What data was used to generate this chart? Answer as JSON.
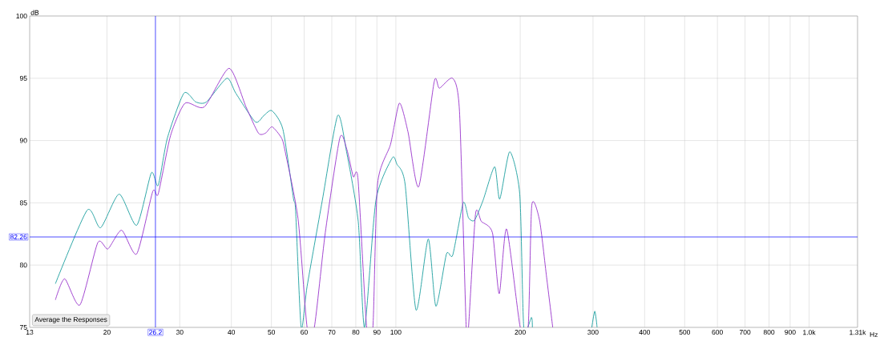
{
  "chart_data": {
    "type": "line",
    "xlabel": "Hz",
    "ylabel": "dB",
    "log": "x",
    "grid": true,
    "marker": "none",
    "line_style": "solid",
    "xlim": [
      13,
      1310
    ],
    "ylim": [
      75,
      100
    ],
    "xticks": [
      13,
      20,
      30,
      40,
      50,
      60,
      70,
      80,
      90,
      100,
      200,
      300,
      400,
      500,
      600,
      700,
      800,
      900,
      {
        "value": 1000,
        "label": "1.0k"
      },
      {
        "value": 1310,
        "label": "1.31k"
      }
    ],
    "yticks": [
      75,
      80,
      85,
      90,
      95,
      100
    ],
    "ref_lines": [
      {
        "axis": "x",
        "value": 26.2,
        "label": "26.2",
        "color": "#0000ff"
      },
      {
        "axis": "y",
        "value": 82.26,
        "label": "82.26",
        "color": "#0000ff"
      }
    ],
    "annotations": [
      "Average the Responses"
    ],
    "series": [
      {
        "color": "#1a9e9e",
        "x": [
          15.0,
          17.9,
          19.3,
          21.4,
          23.6,
          25.6,
          26.6,
          28.0,
          30.7,
          32.8,
          34.8,
          39.0,
          41.0,
          45.7,
          47.9,
          50.1,
          53.3,
          56.5,
          57.2,
          59.0,
          61.0,
          66.4,
          72.3,
          76.0,
          81.1,
          84,
          89.5,
          98.0,
          100.6,
          105.3,
          111.9,
          119.8,
          125.0,
          132.6,
          137.3,
          145.6,
          149.9,
          155.0,
          162.6,
          173.4,
          178.4,
          188.6,
          199.5,
          204,
          212.9,
          214,
          250,
          298,
          303,
          307
        ],
        "values": [
          78.5,
          84.4,
          83.0,
          85.7,
          83.2,
          87.4,
          86.4,
          90.2,
          93.8,
          93.1,
          93.1,
          95.0,
          93.8,
          91.5,
          92.0,
          92.4,
          90.9,
          85.4,
          84.4,
          75,
          78.3,
          85.2,
          92.0,
          89.1,
          83.5,
          75,
          85.2,
          88.6,
          88.1,
          86.5,
          76.4,
          82.1,
          76.7,
          80.9,
          80.8,
          85.0,
          83.8,
          83.6,
          85.2,
          87.9,
          85.3,
          89.1,
          85.7,
          75,
          75.8,
          75,
          null,
          75,
          76.3,
          75
        ]
      },
      {
        "color": "#9933cc",
        "x": [
          15.0,
          15.8,
          17.2,
          19.0,
          20.1,
          21.7,
          23.6,
          25.8,
          26.6,
          28.5,
          30.9,
          34.4,
          39.5,
          43.4,
          46.5,
          48.4,
          50.2,
          52.9,
          54.0,
          58.0,
          61,
          63.5,
          67.5,
          73.2,
          76.1,
          78.9,
          81.0,
          85,
          88,
          90.3,
          97.1,
          102,
          107.0,
          113.6,
          123.8,
          127.5,
          137.3,
          142.6,
          148,
          149.9,
          155.9,
          161.1,
          171.3,
          177.9,
          185.4,
          200,
          209,
          213.3,
          222.7,
          231.7,
          239.7
        ],
        "values": [
          77.2,
          78.9,
          76.8,
          81.8,
          81.3,
          82.8,
          80.9,
          85.9,
          85.7,
          90.4,
          93.0,
          92.7,
          95.8,
          92.7,
          90.6,
          90.6,
          91.1,
          90.2,
          89.1,
          83.7,
          75,
          75,
          82.6,
          90.2,
          89.3,
          87.1,
          86.9,
          75,
          75,
          86.5,
          89.7,
          93.0,
          90.7,
          86.3,
          94.7,
          94.2,
          95.0,
          92.3,
          75,
          75,
          84.1,
          83.5,
          82.6,
          77.7,
          82.9,
          75,
          75,
          84.8,
          83.6,
          79.0,
          75
        ]
      }
    ]
  }
}
